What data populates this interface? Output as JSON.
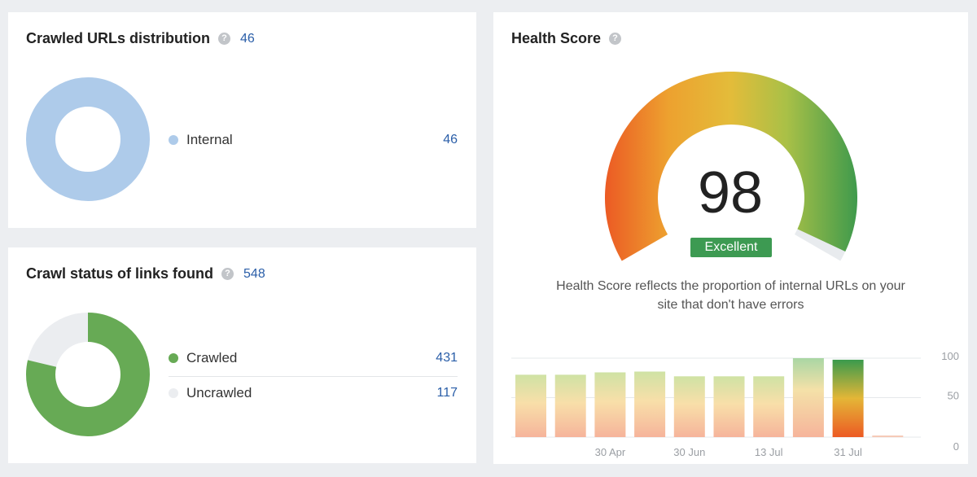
{
  "crawled_urls": {
    "title": "Crawled URLs distribution",
    "total": "46",
    "help_icon": "question-circle-icon",
    "legend": [
      {
        "label": "Internal",
        "value": "46",
        "color": "#aecbea"
      }
    ]
  },
  "crawl_status": {
    "title": "Crawl status of links found",
    "total": "548",
    "help_icon": "question-circle-icon",
    "legend": [
      {
        "label": "Crawled",
        "value": "431",
        "color": "#67aa55"
      },
      {
        "label": "Uncrawled",
        "value": "117",
        "color": "#ebedf0"
      }
    ]
  },
  "health": {
    "title": "Health Score",
    "help_icon": "question-circle-icon",
    "score": "98",
    "badge": "Excellent",
    "badge_color": "#3d9a52",
    "description_line1": "Health Score reflects the proportion of internal URLs on your",
    "description_line2": "site that don't have errors"
  },
  "chart_data": {
    "type": "bar",
    "values": [
      79,
      79,
      82,
      83,
      77,
      77,
      77,
      100,
      98,
      2
    ],
    "x_ticks": [
      "30 Apr",
      "30 Jun",
      "13 Jul",
      "31 Jul"
    ],
    "y_ticks": [
      "100",
      "50",
      "0"
    ],
    "ylim": [
      0,
      100
    ],
    "grid": true,
    "y_axis_side": "right"
  }
}
